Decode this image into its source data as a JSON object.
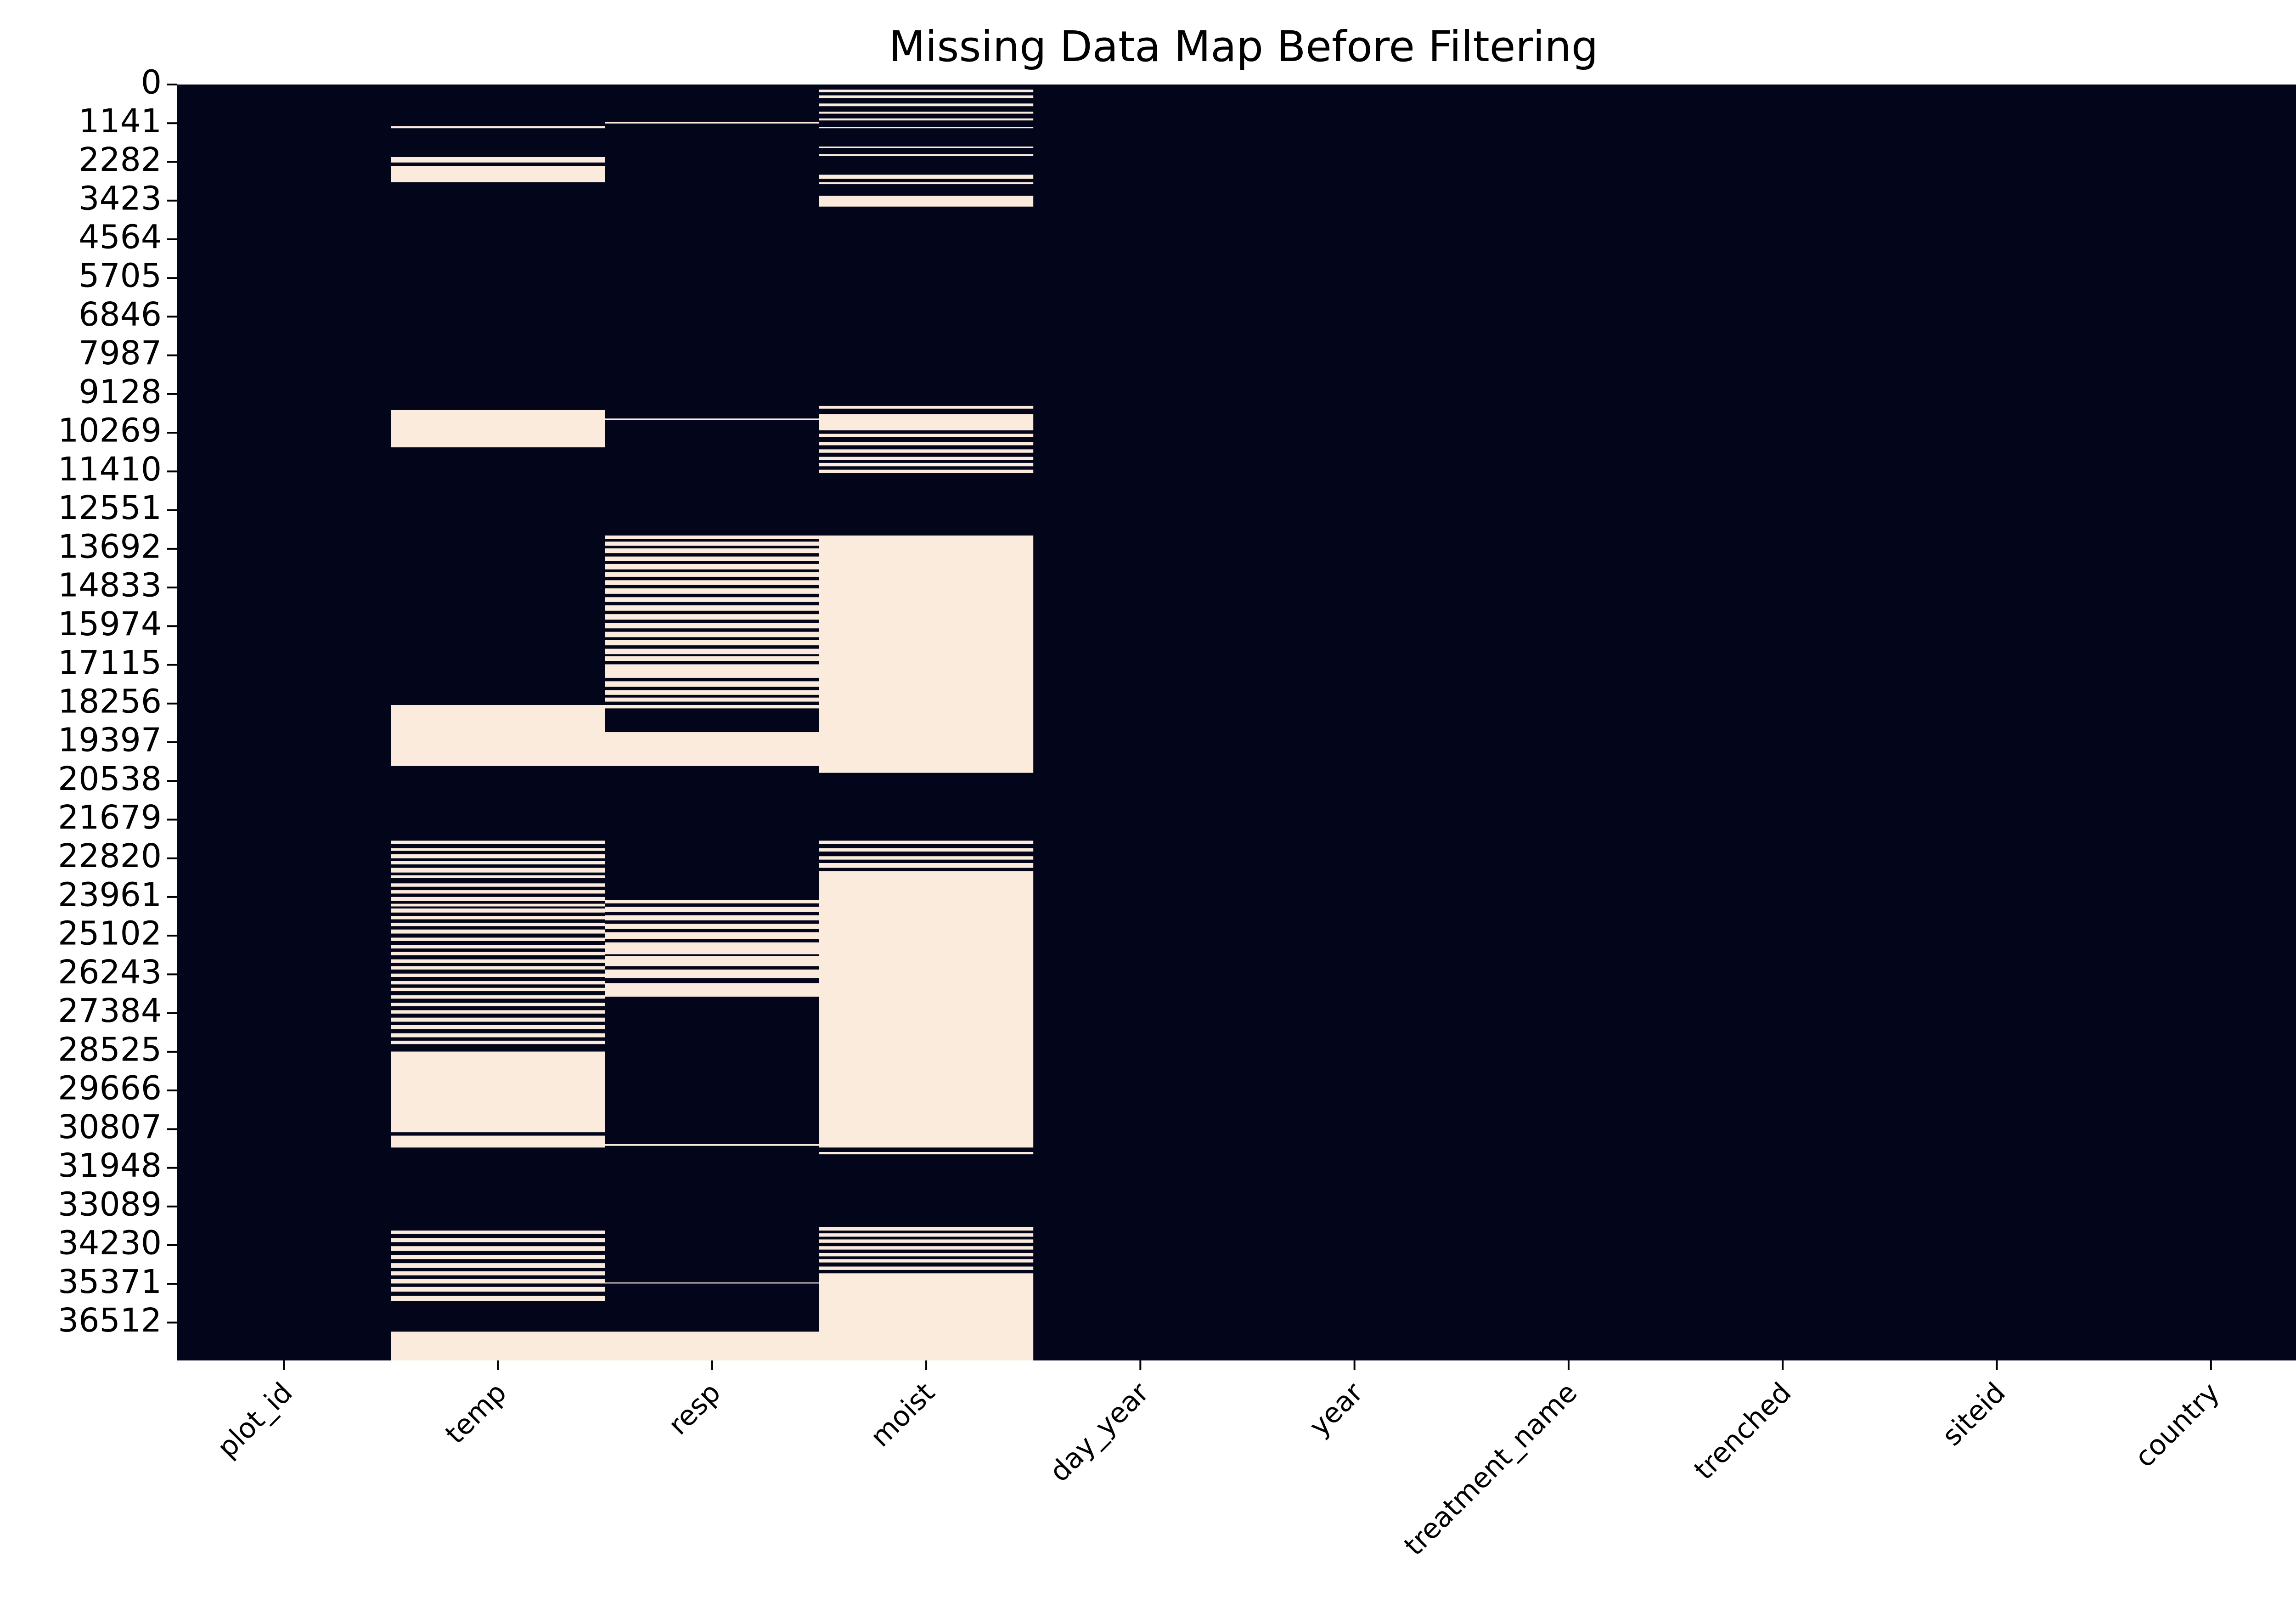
{
  "chart_data": {
    "type": "heatmap",
    "title": "Missing Data Map Before Filtering",
    "xlabel": "",
    "ylabel": "",
    "columns": [
      "plot_id",
      "temp",
      "resp",
      "moist",
      "day_year",
      "year",
      "treatment_name",
      "trenched",
      "siteid",
      "country"
    ],
    "y_tick_labels": [
      0,
      1141,
      2282,
      3423,
      4564,
      5705,
      6846,
      7987,
      9128,
      10269,
      11410,
      12551,
      13692,
      14833,
      15974,
      17115,
      18256,
      19397,
      20538,
      21679,
      22820,
      23961,
      25102,
      26243,
      27384,
      28525,
      29666,
      30807,
      31948,
      33089,
      34230,
      35371,
      36512
    ],
    "row_count": 37630,
    "present_color": "#03051a",
    "missing_color": "#faebdd",
    "grid": false,
    "colorbar": false,
    "missing_ranges": {
      "plot_id": [],
      "temp": [
        [
          1230,
          1290
        ],
        [
          2140,
          2300
        ],
        [
          2400,
          2880
        ],
        [
          9600,
          10700
        ],
        [
          18300,
          20100
        ],
        [
          22300,
          22400
        ],
        [
          22520,
          22600
        ],
        [
          22700,
          22820
        ],
        [
          22900,
          23000
        ],
        [
          23100,
          23240
        ],
        [
          23320,
          23400
        ],
        [
          23560,
          23660
        ],
        [
          23760,
          23860
        ],
        [
          23960,
          24080
        ],
        [
          24160,
          24240
        ],
        [
          24300,
          24420
        ],
        [
          24520,
          24620
        ],
        [
          24720,
          24820
        ],
        [
          24920,
          25040
        ],
        [
          25160,
          25260
        ],
        [
          25380,
          25480
        ],
        [
          25580,
          25680
        ],
        [
          25800,
          25900
        ],
        [
          26000,
          26100
        ],
        [
          26220,
          26320
        ],
        [
          26440,
          26540
        ],
        [
          26640,
          26740
        ],
        [
          26860,
          26960
        ],
        [
          27080,
          27180
        ],
        [
          27300,
          27400
        ],
        [
          27520,
          27640
        ],
        [
          27740,
          27860
        ],
        [
          27980,
          28100
        ],
        [
          28200,
          28300
        ],
        [
          28520,
          30900
        ],
        [
          31000,
          31350
        ],
        [
          33800,
          33900
        ],
        [
          34020,
          34140
        ],
        [
          34260,
          34400
        ],
        [
          34520,
          34640
        ],
        [
          34760,
          34900
        ],
        [
          35000,
          35120
        ],
        [
          35220,
          35360
        ],
        [
          35460,
          35600
        ],
        [
          35720,
          35880
        ],
        [
          36780,
          37630
        ]
      ],
      "resp": [
        [
          1100,
          1150
        ],
        [
          9850,
          9900
        ],
        [
          13300,
          13400
        ],
        [
          13480,
          13600
        ],
        [
          13680,
          13820
        ],
        [
          13920,
          14060
        ],
        [
          14140,
          14300
        ],
        [
          14380,
          14520
        ],
        [
          14620,
          14760
        ],
        [
          14860,
          15020
        ],
        [
          15120,
          15260
        ],
        [
          15360,
          15520
        ],
        [
          15620,
          15780
        ],
        [
          15880,
          16040
        ],
        [
          16140,
          16300
        ],
        [
          16380,
          16540
        ],
        [
          16640,
          16800
        ],
        [
          16860,
          17000
        ],
        [
          17100,
          17500
        ],
        [
          17600,
          17760
        ],
        [
          17860,
          18000
        ],
        [
          18080,
          18200
        ],
        [
          18300,
          18400
        ],
        [
          19100,
          20100
        ],
        [
          24050,
          24150
        ],
        [
          24250,
          24400
        ],
        [
          24500,
          24650
        ],
        [
          24750,
          24900
        ],
        [
          25000,
          25200
        ],
        [
          25300,
          25650
        ],
        [
          25700,
          26000
        ],
        [
          26100,
          26350
        ],
        [
          26500,
          26900
        ],
        [
          31250,
          31300
        ],
        [
          35330,
          35360
        ],
        [
          36780,
          37630
        ]
      ],
      "moist": [
        [
          150,
          230
        ],
        [
          320,
          400
        ],
        [
          560,
          640
        ],
        [
          800,
          860
        ],
        [
          1000,
          1060
        ],
        [
          1250,
          1290
        ],
        [
          1830,
          1870
        ],
        [
          2050,
          2110
        ],
        [
          2660,
          2780
        ],
        [
          2880,
          2940
        ],
        [
          3280,
          3600
        ],
        [
          9480,
          9560
        ],
        [
          9720,
          10200
        ],
        [
          10300,
          10400
        ],
        [
          10540,
          10640
        ],
        [
          10760,
          10860
        ],
        [
          10980,
          11080
        ],
        [
          11160,
          11260
        ],
        [
          11360,
          11460
        ],
        [
          13300,
          20300
        ],
        [
          22300,
          22400
        ],
        [
          22520,
          22620
        ],
        [
          22760,
          22860
        ],
        [
          22960,
          23100
        ],
        [
          23200,
          31350
        ],
        [
          31480,
          31550
        ],
        [
          33700,
          33800
        ],
        [
          33880,
          33980
        ],
        [
          34060,
          34160
        ],
        [
          34260,
          34360
        ],
        [
          34460,
          34560
        ],
        [
          34640,
          34740
        ],
        [
          34860,
          34960
        ],
        [
          35060,
          37630
        ]
      ],
      "day_year": [],
      "year": [],
      "treatment_name": [],
      "trenched": [],
      "siteid": [],
      "country": []
    }
  }
}
